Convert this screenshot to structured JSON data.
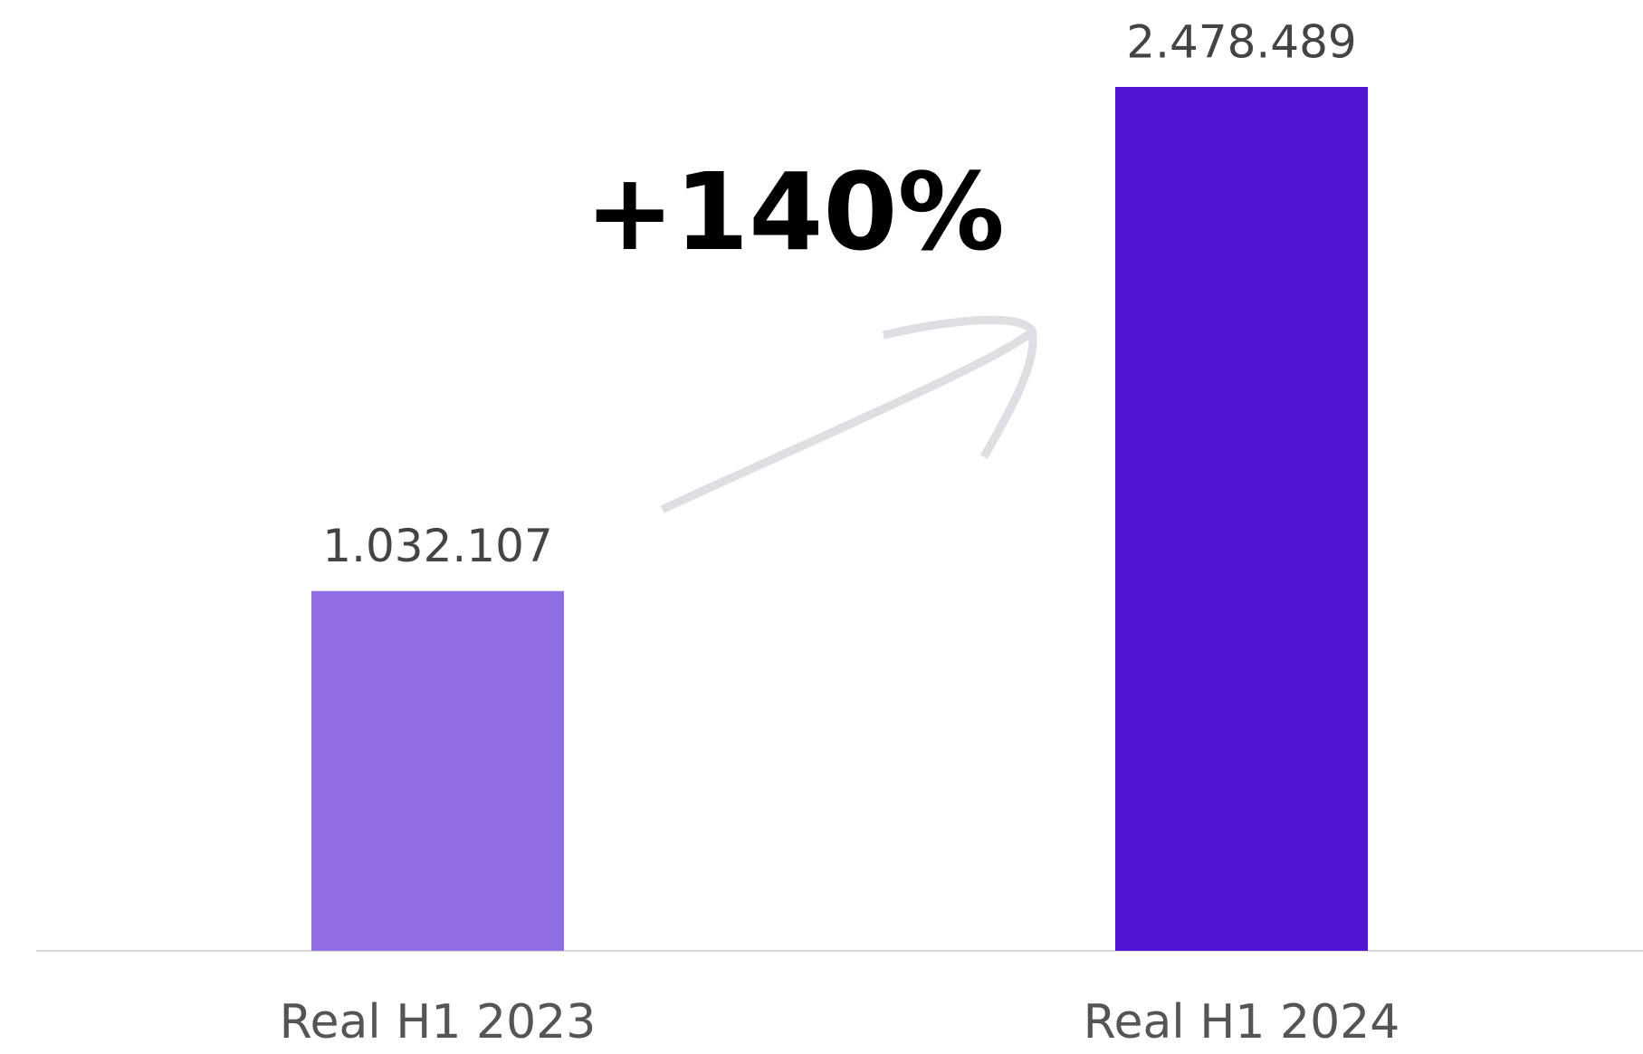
{
  "chart_data": {
    "type": "bar",
    "categories": [
      "Real H1 2023",
      "Real H1 2024"
    ],
    "values": [
      1032107,
      2478489
    ],
    "value_labels": [
      "1.032.107",
      "2.478.489"
    ],
    "colors": [
      "#8f6ee2",
      "#5014d4"
    ],
    "annotation": "+140%"
  }
}
